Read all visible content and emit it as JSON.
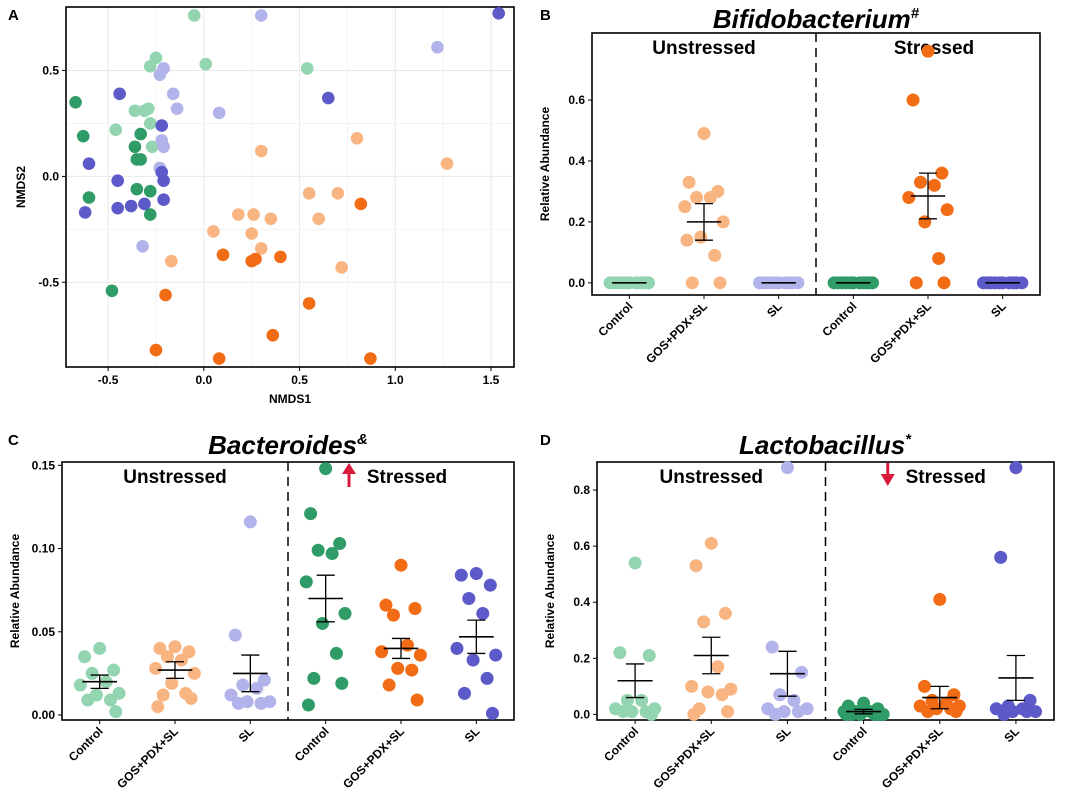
{
  "colors": {
    "Control_U": "#92d5b0",
    "GOS_U": "#f8b582",
    "SL_U": "#b1b3ea",
    "Control_S": "#2f9b66",
    "GOS_S": "#f26b15",
    "SL_S": "#5c59c9",
    "arrow": "#d91a3a"
  },
  "chart_data": [
    {
      "id": "A",
      "panel_label": "A",
      "type": "scatter",
      "title": "",
      "xlabel": "NMDS1",
      "ylabel": "NMDS2",
      "xlim": [
        -0.72,
        1.62
      ],
      "ylim": [
        -0.9,
        0.8
      ],
      "xticks": [
        -0.5,
        0.0,
        0.5,
        1.0,
        1.5
      ],
      "xtick_labels": [
        "-0.5",
        "0.0",
        "0.5",
        "1.0",
        "1.5"
      ],
      "yticks": [
        -0.5,
        0.0,
        0.5
      ],
      "ytick_labels": [
        "-0.5",
        "0.0",
        "0.5"
      ],
      "grid": true,
      "series": [
        {
          "name": "Control Unstressed",
          "color_key": "Control_U",
          "points": [
            [
              -0.05,
              0.76
            ],
            [
              -0.25,
              0.56
            ],
            [
              -0.28,
              0.52
            ],
            [
              0.01,
              0.53
            ],
            [
              0.54,
              0.51
            ],
            [
              -0.36,
              0.31
            ],
            [
              -0.31,
              0.31
            ],
            [
              -0.29,
              0.32
            ],
            [
              -0.46,
              0.22
            ],
            [
              -0.28,
              0.25
            ],
            [
              -0.27,
              0.14
            ]
          ]
        },
        {
          "name": "Control Stressed",
          "color_key": "Control_S",
          "points": [
            [
              -0.67,
              0.35
            ],
            [
              -0.63,
              0.19
            ],
            [
              -0.36,
              0.14
            ],
            [
              -0.33,
              0.2
            ],
            [
              -0.35,
              0.08
            ],
            [
              -0.33,
              0.08
            ],
            [
              -0.6,
              -0.1
            ],
            [
              -0.35,
              -0.06
            ],
            [
              -0.28,
              -0.07
            ],
            [
              -0.28,
              -0.18
            ],
            [
              -0.48,
              -0.54
            ]
          ]
        },
        {
          "name": "SL Unstressed",
          "color_key": "SL_U",
          "points": [
            [
              0.3,
              0.76
            ],
            [
              1.22,
              0.61
            ],
            [
              -0.21,
              0.51
            ],
            [
              -0.23,
              0.48
            ],
            [
              -0.16,
              0.39
            ],
            [
              -0.14,
              0.32
            ],
            [
              -0.22,
              0.17
            ],
            [
              -0.21,
              0.14
            ],
            [
              -0.23,
              0.04
            ],
            [
              0.08,
              0.3
            ],
            [
              -0.32,
              -0.33
            ]
          ]
        },
        {
          "name": "SL Stressed",
          "color_key": "SL_S",
          "points": [
            [
              1.54,
              0.77
            ],
            [
              0.65,
              0.37
            ],
            [
              -0.44,
              0.39
            ],
            [
              -0.22,
              0.24
            ],
            [
              -0.6,
              0.06
            ],
            [
              -0.45,
              -0.02
            ],
            [
              -0.38,
              -0.14
            ],
            [
              -0.45,
              -0.15
            ],
            [
              -0.22,
              0.02
            ],
            [
              -0.21,
              -0.02
            ],
            [
              -0.21,
              -0.11
            ],
            [
              -0.62,
              -0.17
            ],
            [
              -0.31,
              -0.13
            ]
          ]
        },
        {
          "name": "GOS+PDX+SL Unstressed",
          "color_key": "GOS_U",
          "points": [
            [
              0.3,
              0.12
            ],
            [
              0.8,
              0.18
            ],
            [
              1.27,
              0.06
            ],
            [
              0.7,
              -0.08
            ],
            [
              0.55,
              -0.08
            ],
            [
              0.18,
              -0.18
            ],
            [
              0.26,
              -0.18
            ],
            [
              0.35,
              -0.2
            ],
            [
              0.6,
              -0.2
            ],
            [
              0.05,
              -0.26
            ],
            [
              0.25,
              -0.27
            ],
            [
              0.3,
              -0.34
            ],
            [
              -0.17,
              -0.4
            ],
            [
              0.72,
              -0.43
            ]
          ]
        },
        {
          "name": "GOS+PDX+SL Stressed",
          "color_key": "GOS_S",
          "points": [
            [
              0.82,
              -0.13
            ],
            [
              0.1,
              -0.37
            ],
            [
              0.25,
              -0.4
            ],
            [
              0.27,
              -0.39
            ],
            [
              0.4,
              -0.38
            ],
            [
              -0.2,
              -0.56
            ],
            [
              0.55,
              -0.6
            ],
            [
              0.36,
              -0.75
            ],
            [
              -0.25,
              -0.82
            ],
            [
              0.08,
              -0.86
            ],
            [
              0.87,
              -0.86
            ]
          ]
        }
      ]
    },
    {
      "id": "B",
      "panel_label": "B",
      "type": "dot-strip",
      "title": "Bifidobacterium",
      "title_mark": "#",
      "ylabel": "Relative Abundance",
      "ylim": [
        -0.04,
        0.82
      ],
      "yticks": [
        0.0,
        0.2,
        0.4,
        0.6
      ],
      "ytick_labels": [
        "0.0",
        "0.2",
        "0.4",
        "0.6"
      ],
      "group_labels": [
        "Unstressed",
        "Stressed"
      ],
      "arrow": "none",
      "categories": [
        "Control",
        "GOS+PDX+SL",
        "SL",
        "Control",
        "GOS+PDX+SL",
        "SL"
      ],
      "color_keys": [
        "Control_U",
        "GOS_U",
        "SL_U",
        "Control_S",
        "GOS_S",
        "SL_S"
      ],
      "means": [
        0.0,
        0.2,
        0.0,
        0.0,
        0.285,
        0.0
      ],
      "sems": [
        0.0,
        0.06,
        0.0,
        0.0,
        0.075,
        0.0
      ],
      "series": [
        {
          "values": [
            0,
            0,
            0,
            0,
            0,
            0,
            0,
            0,
            0,
            0,
            0
          ]
        },
        {
          "values": [
            0.49,
            0.33,
            0.3,
            0.28,
            0.28,
            0.25,
            0.2,
            0.15,
            0.09,
            0.0,
            0.0,
            0.14
          ]
        },
        {
          "values": [
            0,
            0,
            0,
            0,
            0,
            0,
            0,
            0,
            0,
            0
          ]
        },
        {
          "values": [
            0,
            0,
            0,
            0,
            0,
            0,
            0,
            0,
            0,
            0,
            0
          ]
        },
        {
          "values": [
            0.76,
            0.6,
            0.36,
            0.33,
            0.32,
            0.28,
            0.24,
            0.2,
            0.08,
            0.0,
            0.0
          ]
        },
        {
          "values": [
            0,
            0,
            0,
            0,
            0,
            0,
            0,
            0,
            0,
            0
          ]
        }
      ]
    },
    {
      "id": "C",
      "panel_label": "C",
      "type": "dot-strip",
      "title": "Bacteroides",
      "title_mark": "&",
      "ylabel": "Relative Abundance",
      "ylim": [
        -0.003,
        0.152
      ],
      "yticks": [
        0.0,
        0.05,
        0.1,
        0.15
      ],
      "ytick_labels": [
        "0.00",
        "0.05",
        "0.10",
        "0.15"
      ],
      "group_labels": [
        "Unstressed",
        "Stressed"
      ],
      "arrow": "up",
      "categories": [
        "Control",
        "GOS+PDX+SL",
        "SL",
        "Control",
        "GOS+PDX+SL",
        "SL"
      ],
      "color_keys": [
        "Control_U",
        "GOS_U",
        "SL_U",
        "Control_S",
        "GOS_S",
        "SL_S"
      ],
      "means": [
        0.02,
        0.027,
        0.025,
        0.07,
        0.04,
        0.047
      ],
      "sems": [
        0.004,
        0.005,
        0.011,
        0.014,
        0.006,
        0.01
      ],
      "series": [
        {
          "values": [
            0.04,
            0.035,
            0.027,
            0.025,
            0.02,
            0.018,
            0.013,
            0.012,
            0.009,
            0.009,
            0.002
          ]
        },
        {
          "values": [
            0.041,
            0.04,
            0.038,
            0.035,
            0.033,
            0.028,
            0.025,
            0.019,
            0.013,
            0.012,
            0.01,
            0.005
          ]
        },
        {
          "values": [
            0.116,
            0.048,
            0.021,
            0.018,
            0.016,
            0.012,
            0.008,
            0.008,
            0.007,
            0.007
          ]
        },
        {
          "values": [
            0.148,
            0.121,
            0.103,
            0.099,
            0.097,
            0.08,
            0.061,
            0.055,
            0.037,
            0.022,
            0.019,
            0.006
          ]
        },
        {
          "values": [
            0.09,
            0.066,
            0.064,
            0.06,
            0.042,
            0.038,
            0.036,
            0.028,
            0.027,
            0.018,
            0.009
          ]
        },
        {
          "values": [
            0.085,
            0.084,
            0.078,
            0.07,
            0.061,
            0.04,
            0.036,
            0.033,
            0.022,
            0.013,
            0.001
          ]
        }
      ]
    },
    {
      "id": "D",
      "panel_label": "D",
      "type": "dot-strip",
      "title": "Lactobacillus",
      "title_mark": "*",
      "ylabel": "Relative Abundance",
      "ylim": [
        -0.02,
        0.9
      ],
      "yticks": [
        0.0,
        0.2,
        0.4,
        0.6,
        0.8
      ],
      "ytick_labels": [
        "0.0",
        "0.2",
        "0.4",
        "0.6",
        "0.8"
      ],
      "group_labels": [
        "Unstressed",
        "Stressed"
      ],
      "arrow": "down",
      "categories": [
        "Control",
        "GOS+PDX+SL",
        "SL",
        "Control",
        "GOS+PDX+SL",
        "SL"
      ],
      "color_keys": [
        "Control_U",
        "GOS_U",
        "SL_U",
        "Control_S",
        "GOS_S",
        "SL_S"
      ],
      "means": [
        0.12,
        0.21,
        0.145,
        0.01,
        0.06,
        0.13
      ],
      "sems": [
        0.06,
        0.065,
        0.08,
        0.008,
        0.04,
        0.08
      ],
      "series": [
        {
          "values": [
            0.54,
            0.22,
            0.21,
            0.05,
            0.05,
            0.02,
            0.02,
            0.01,
            0.01,
            0.01,
            0.0
          ]
        },
        {
          "values": [
            0.61,
            0.53,
            0.36,
            0.33,
            0.17,
            0.1,
            0.09,
            0.08,
            0.07,
            0.02,
            0.01,
            0.0
          ]
        },
        {
          "values": [
            0.88,
            0.24,
            0.15,
            0.07,
            0.05,
            0.02,
            0.02,
            0.01,
            0.01,
            0.0
          ]
        },
        {
          "values": [
            0.04,
            0.03,
            0.02,
            0.01,
            0.01,
            0.01,
            0.0,
            0.0,
            0.0,
            0.0,
            0.0,
            0.0
          ]
        },
        {
          "values": [
            0.41,
            0.1,
            0.07,
            0.05,
            0.04,
            0.03,
            0.03,
            0.02,
            0.02,
            0.01,
            0.01
          ]
        },
        {
          "values": [
            0.88,
            0.56,
            0.05,
            0.03,
            0.02,
            0.02,
            0.01,
            0.01,
            0.01,
            0.0
          ]
        }
      ]
    }
  ]
}
